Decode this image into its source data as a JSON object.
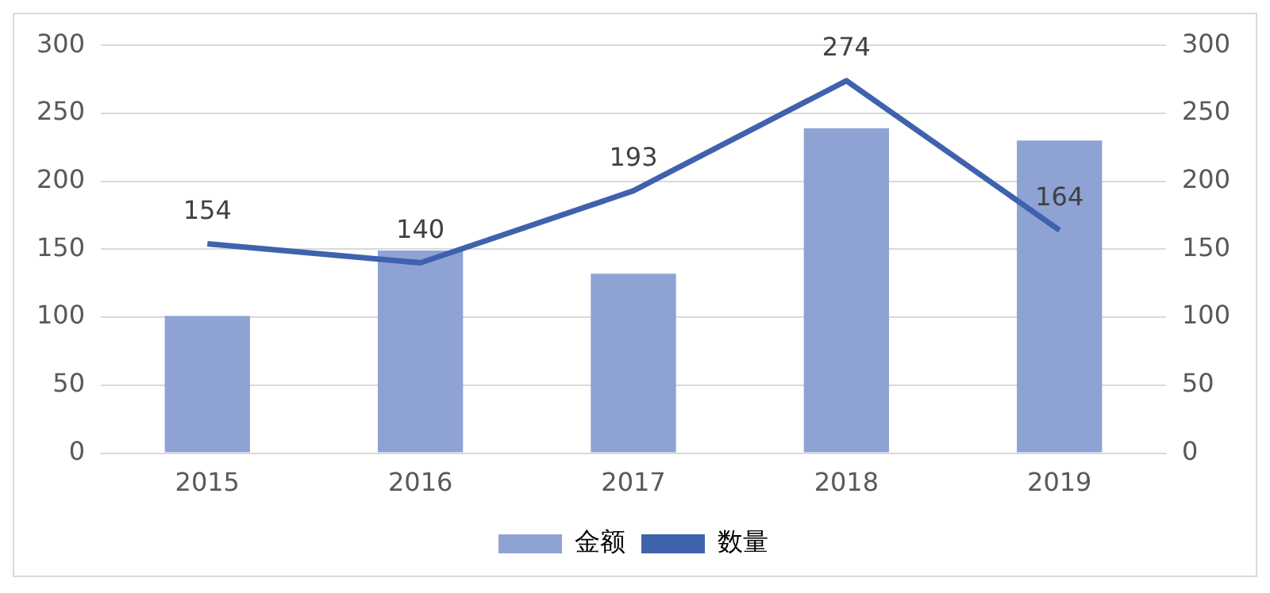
{
  "chart_data": {
    "type": "bar",
    "categories": [
      "2015",
      "2016",
      "2017",
      "2018",
      "2019"
    ],
    "series": [
      {
        "name": "金额",
        "color": "#8fa2d4",
        "values": [
          101,
          149,
          132,
          239,
          230
        ]
      },
      {
        "name": "数量",
        "type": "line",
        "axis": "y2",
        "color": "#3f62ad",
        "values": [
          154,
          140,
          193,
          274,
          164
        ],
        "value_labels": [
          "154",
          "140",
          "193",
          "274",
          "164"
        ]
      }
    ],
    "ylim": [
      0,
      300
    ],
    "yticks": [
      0,
      50,
      100,
      150,
      200,
      250,
      300
    ],
    "y2lim": [
      0,
      300
    ],
    "y2ticks": [
      0,
      50,
      100,
      150,
      200,
      250,
      300
    ],
    "grid": "y",
    "legend": "bottom",
    "marker": "none"
  }
}
